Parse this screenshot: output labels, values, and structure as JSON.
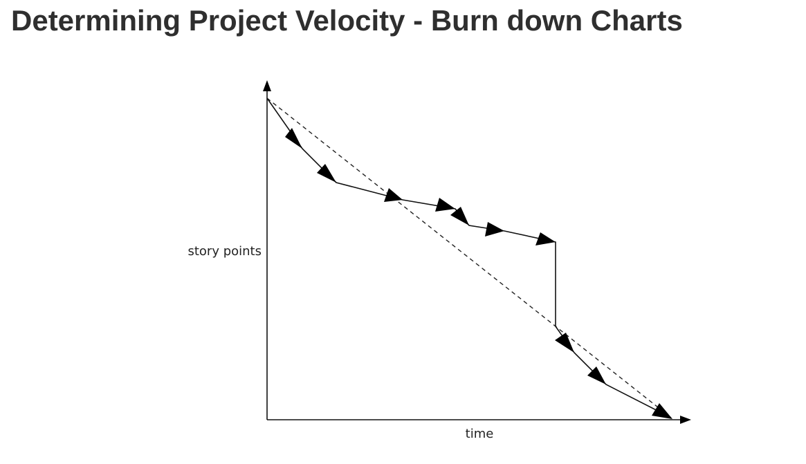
{
  "title": "Determining Project Velocity - Burn down Charts",
  "diagram": {
    "y_axis_label": "story points",
    "x_axis_label": "time"
  }
}
